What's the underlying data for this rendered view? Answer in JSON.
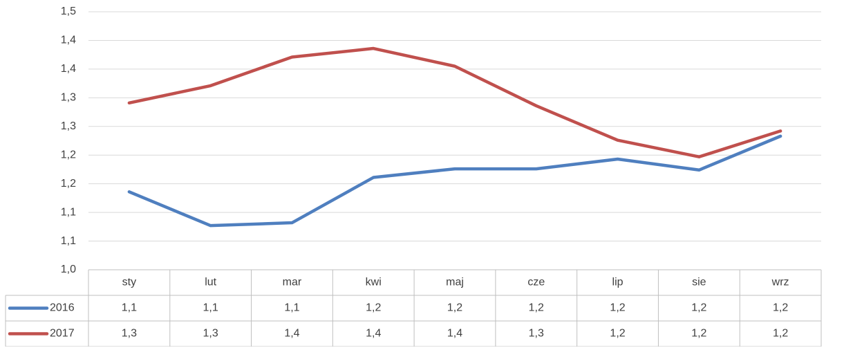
{
  "chart_data": {
    "type": "line",
    "categories": [
      "sty",
      "lut",
      "mar",
      "kwi",
      "maj",
      "cze",
      "lip",
      "sie",
      "wrz"
    ],
    "series": [
      {
        "name": "2016",
        "color": "#4f7fbf",
        "values": [
          1.136,
          1.077,
          1.082,
          1.161,
          1.176,
          1.176,
          1.193,
          1.174,
          1.233
        ],
        "value_labels": [
          "1,1",
          "1,1",
          "1,1",
          "1,2",
          "1,2",
          "1,2",
          "1,2",
          "1,2",
          "1,2"
        ]
      },
      {
        "name": "2017",
        "color": "#c0504d",
        "values": [
          1.291,
          1.321,
          1.371,
          1.386,
          1.355,
          1.286,
          1.226,
          1.197,
          1.242
        ],
        "value_labels": [
          "1,3",
          "1,3",
          "1,4",
          "1,4",
          "1,4",
          "1,3",
          "1,2",
          "1,2",
          "1,2"
        ]
      }
    ],
    "ylim": [
      1.0,
      1.45
    ],
    "yticks": [
      {
        "value": 1.0,
        "label": "1,0"
      },
      {
        "value": 1.05,
        "label": "1,1"
      },
      {
        "value": 1.1,
        "label": "1,1"
      },
      {
        "value": 1.15,
        "label": "1,2"
      },
      {
        "value": 1.2,
        "label": "1,2"
      },
      {
        "value": 1.25,
        "label": "1,3"
      },
      {
        "value": 1.3,
        "label": "1,3"
      },
      {
        "value": 1.35,
        "label": "1,4"
      },
      {
        "value": 1.4,
        "label": "1,4"
      },
      {
        "value": 1.45,
        "label": "1,5"
      }
    ],
    "grid": true
  }
}
